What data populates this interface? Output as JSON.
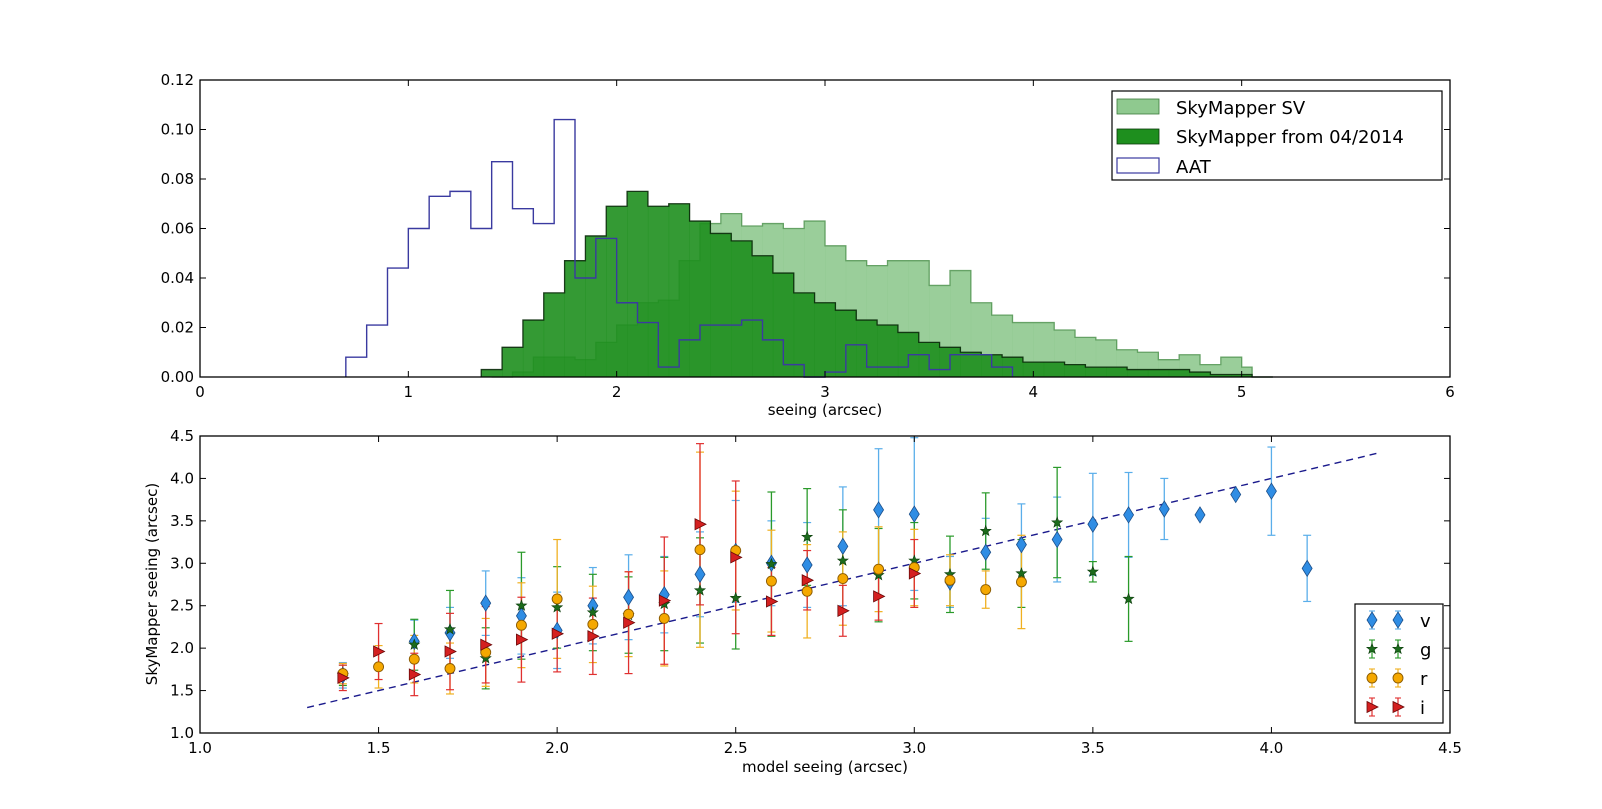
{
  "chart_data": [
    {
      "type": "histogram",
      "xlabel": "seeing (arcsec)",
      "ylabel": "",
      "xlim": [
        0,
        6
      ],
      "ylim": [
        0,
        0.12
      ],
      "xticks": [
        "0",
        "1",
        "2",
        "3",
        "4",
        "5",
        "6"
      ],
      "yticks": [
        "0.00",
        "0.02",
        "0.04",
        "0.06",
        "0.08",
        "0.10",
        "0.12"
      ],
      "legend_position": "top-right",
      "series": [
        {
          "name": "SkyMapper SV",
          "style": "filled",
          "color": "#8fc98f",
          "alpha": 0.9,
          "edges": [
            1.4,
            1.5,
            1.6,
            1.7,
            1.8,
            1.9,
            2.0,
            2.1,
            2.2,
            2.3,
            2.4,
            2.5,
            2.6,
            2.7,
            2.8,
            2.9,
            3.0,
            3.1,
            3.2,
            3.3,
            3.4,
            3.5,
            3.6,
            3.7,
            3.8,
            3.9,
            4.0,
            4.1,
            4.2,
            4.3,
            4.4,
            4.5,
            4.6,
            4.7,
            4.8,
            4.9,
            5.0,
            5.05
          ],
          "values": [
            0,
            0.002,
            0.008,
            0.008,
            0.007,
            0.014,
            0.021,
            0.03,
            0.031,
            0.047,
            0.062,
            0.066,
            0.061,
            0.062,
            0.06,
            0.063,
            0.053,
            0.047,
            0.045,
            0.047,
            0.047,
            0.037,
            0.043,
            0.03,
            0.025,
            0.022,
            0.022,
            0.019,
            0.016,
            0.015,
            0.011,
            0.01,
            0.007,
            0.009,
            0.005,
            0.008,
            0.004,
            0
          ]
        },
        {
          "name": "SkyMapper from 04/2014",
          "style": "filled",
          "color": "#1e8f1e",
          "alpha": 0.9,
          "edges": [
            1.35,
            1.45,
            1.55,
            1.65,
            1.75,
            1.85,
            1.95,
            2.05,
            2.15,
            2.25,
            2.35,
            2.45,
            2.55,
            2.65,
            2.75,
            2.85,
            2.95,
            3.05,
            3.15,
            3.25,
            3.35,
            3.45,
            3.55,
            3.65,
            3.75,
            3.85,
            3.95,
            4.05,
            4.15,
            4.25,
            4.35,
            4.45,
            4.55,
            4.65,
            4.75,
            4.85,
            4.95,
            5.05
          ],
          "values": [
            0.003,
            0.012,
            0.023,
            0.034,
            0.047,
            0.057,
            0.069,
            0.075,
            0.069,
            0.07,
            0.063,
            0.058,
            0.055,
            0.049,
            0.042,
            0.034,
            0.03,
            0.027,
            0.023,
            0.021,
            0.018,
            0.014,
            0.012,
            0.01,
            0.009,
            0.008,
            0.006,
            0.006,
            0.005,
            0.004,
            0.004,
            0.003,
            0.003,
            0.003,
            0.002,
            0.001,
            0.001,
            0
          ]
        },
        {
          "name": "AAT",
          "style": "step-outline",
          "color": "#3a3aa0",
          "edges": [
            0.7,
            0.8,
            0.9,
            1.0,
            1.1,
            1.2,
            1.3,
            1.4,
            1.5,
            1.6,
            1.7,
            1.8,
            1.9,
            2.0,
            2.1,
            2.2,
            2.3,
            2.4,
            2.5,
            2.6,
            2.7,
            2.8,
            2.9,
            3.0,
            3.1,
            3.2,
            3.3,
            3.4,
            3.5,
            3.6,
            3.7,
            3.8
          ],
          "values": [
            0.008,
            0.021,
            0.044,
            0.06,
            0.073,
            0.075,
            0.06,
            0.087,
            0.068,
            0.062,
            0.104,
            0.04,
            0.056,
            0.03,
            0.022,
            0.004,
            0.015,
            0.021,
            0.021,
            0.023,
            0.015,
            0.005,
            0,
            0.002,
            0.013,
            0.004,
            0.004,
            0.009,
            0.003,
            0.009,
            0.009,
            0.004
          ]
        }
      ]
    },
    {
      "type": "scatter",
      "xlabel": "model seeing (arcsec)",
      "ylabel": "SkyMapper seeing (arcsec)",
      "xlim": [
        1.0,
        4.5
      ],
      "ylim": [
        1.0,
        4.5
      ],
      "xticks": [
        "1.0",
        "1.5",
        "2.0",
        "2.5",
        "3.0",
        "3.5",
        "4.0",
        "4.5"
      ],
      "yticks": [
        "1.0",
        "1.5",
        "2.0",
        "2.5",
        "3.0",
        "3.5",
        "4.0",
        "4.5"
      ],
      "legend_position": "bottom-right",
      "reference_line": {
        "style": "dashed",
        "color": "#1a1a8c",
        "x": [
          1.3,
          4.3
        ],
        "y": [
          1.3,
          4.3
        ]
      },
      "series": [
        {
          "name": "v",
          "marker": "diamond",
          "color": "#2f8de4",
          "edge": "#1c4f8a",
          "errcolor": "#5aaeea",
          "x": [
            1.4,
            1.6,
            1.7,
            1.8,
            1.9,
            2.0,
            2.1,
            2.2,
            2.3,
            2.4,
            2.5,
            2.6,
            2.7,
            2.8,
            2.9,
            3.0,
            3.1,
            3.2,
            3.3,
            3.4,
            3.5,
            3.6,
            3.7,
            3.8,
            3.9,
            4.0,
            4.1
          ],
          "y": [
            1.68,
            2.08,
            2.18,
            2.53,
            2.38,
            2.21,
            2.5,
            2.6,
            2.63,
            2.87,
            3.14,
            3.0,
            2.98,
            3.2,
            3.63,
            3.58,
            2.78,
            3.13,
            3.22,
            3.28,
            3.46,
            3.57,
            3.64,
            3.57,
            3.81,
            3.85,
            2.94
          ],
          "err": [
            0.15,
            0.25,
            0.3,
            0.38,
            0.45,
            0.45,
            0.45,
            0.5,
            0.45,
            0.5,
            0.6,
            0.5,
            0.5,
            0.7,
            0.72,
            0.9,
            0.3,
            0.4,
            0.48,
            0.5,
            0.6,
            0.5,
            0.36,
            0,
            0,
            0.52,
            0.39
          ]
        },
        {
          "name": "g",
          "marker": "star",
          "color": "#1c6b1c",
          "edge": "#0c3b0c",
          "errcolor": "#2a9a2a",
          "x": [
            1.4,
            1.6,
            1.7,
            1.8,
            1.9,
            2.0,
            2.1,
            2.2,
            2.3,
            2.4,
            2.5,
            2.6,
            2.7,
            2.8,
            2.9,
            3.0,
            3.1,
            3.2,
            3.3,
            3.4,
            3.5,
            3.6
          ],
          "y": [
            1.68,
            2.04,
            2.22,
            1.88,
            2.5,
            2.48,
            2.42,
            2.39,
            2.52,
            2.68,
            2.59,
            2.99,
            3.31,
            3.03,
            2.86,
            3.03,
            2.87,
            3.38,
            2.88,
            3.48,
            2.9,
            2.58
          ],
          "err": [
            0.12,
            0.3,
            0.46,
            0.36,
            0.63,
            0.48,
            0.45,
            0.45,
            0.55,
            0.62,
            0.6,
            0.85,
            0.57,
            0.6,
            0.55,
            0.45,
            0.45,
            0.45,
            0.4,
            0.65,
            0.12,
            0.5
          ]
        },
        {
          "name": "r",
          "marker": "circle",
          "color": "#f5a800",
          "edge": "#8a5a00",
          "errcolor": "#f0b020",
          "x": [
            1.4,
            1.5,
            1.6,
            1.7,
            1.8,
            1.9,
            2.0,
            2.1,
            2.2,
            2.3,
            2.4,
            2.5,
            2.6,
            2.7,
            2.8,
            2.9,
            3.0,
            3.1,
            3.2,
            3.3
          ],
          "y": [
            1.7,
            1.78,
            1.87,
            1.76,
            1.95,
            2.27,
            2.58,
            2.28,
            2.4,
            2.35,
            3.16,
            3.15,
            2.79,
            2.67,
            2.82,
            2.93,
            2.95,
            2.8,
            2.69,
            2.78
          ],
          "err": [
            0.12,
            0.25,
            0.28,
            0.3,
            0.4,
            0.5,
            0.7,
            0.45,
            0.5,
            0.56,
            1.15,
            0.7,
            0.6,
            0.55,
            0.55,
            0.5,
            0.45,
            0.3,
            0.22,
            0.55
          ]
        },
        {
          "name": "i",
          "marker": "triangle-right",
          "color": "#d42020",
          "edge": "#6a0808",
          "errcolor": "#e03030",
          "x": [
            1.4,
            1.5,
            1.6,
            1.7,
            1.8,
            1.9,
            2.0,
            2.1,
            2.2,
            2.3,
            2.4,
            2.5,
            2.6,
            2.7,
            2.8,
            2.9,
            3.0
          ],
          "y": [
            1.65,
            1.96,
            1.69,
            1.96,
            2.04,
            2.1,
            2.17,
            2.14,
            2.3,
            2.56,
            3.46,
            3.07,
            2.55,
            2.8,
            2.44,
            2.61,
            2.88
          ],
          "err": [
            0.15,
            0.33,
            0.25,
            0.45,
            0.45,
            0.5,
            0.45,
            0.45,
            0.6,
            0.75,
            0.95,
            0.9,
            0.4,
            0.35,
            0.3,
            0.28,
            0.4
          ]
        }
      ]
    }
  ]
}
